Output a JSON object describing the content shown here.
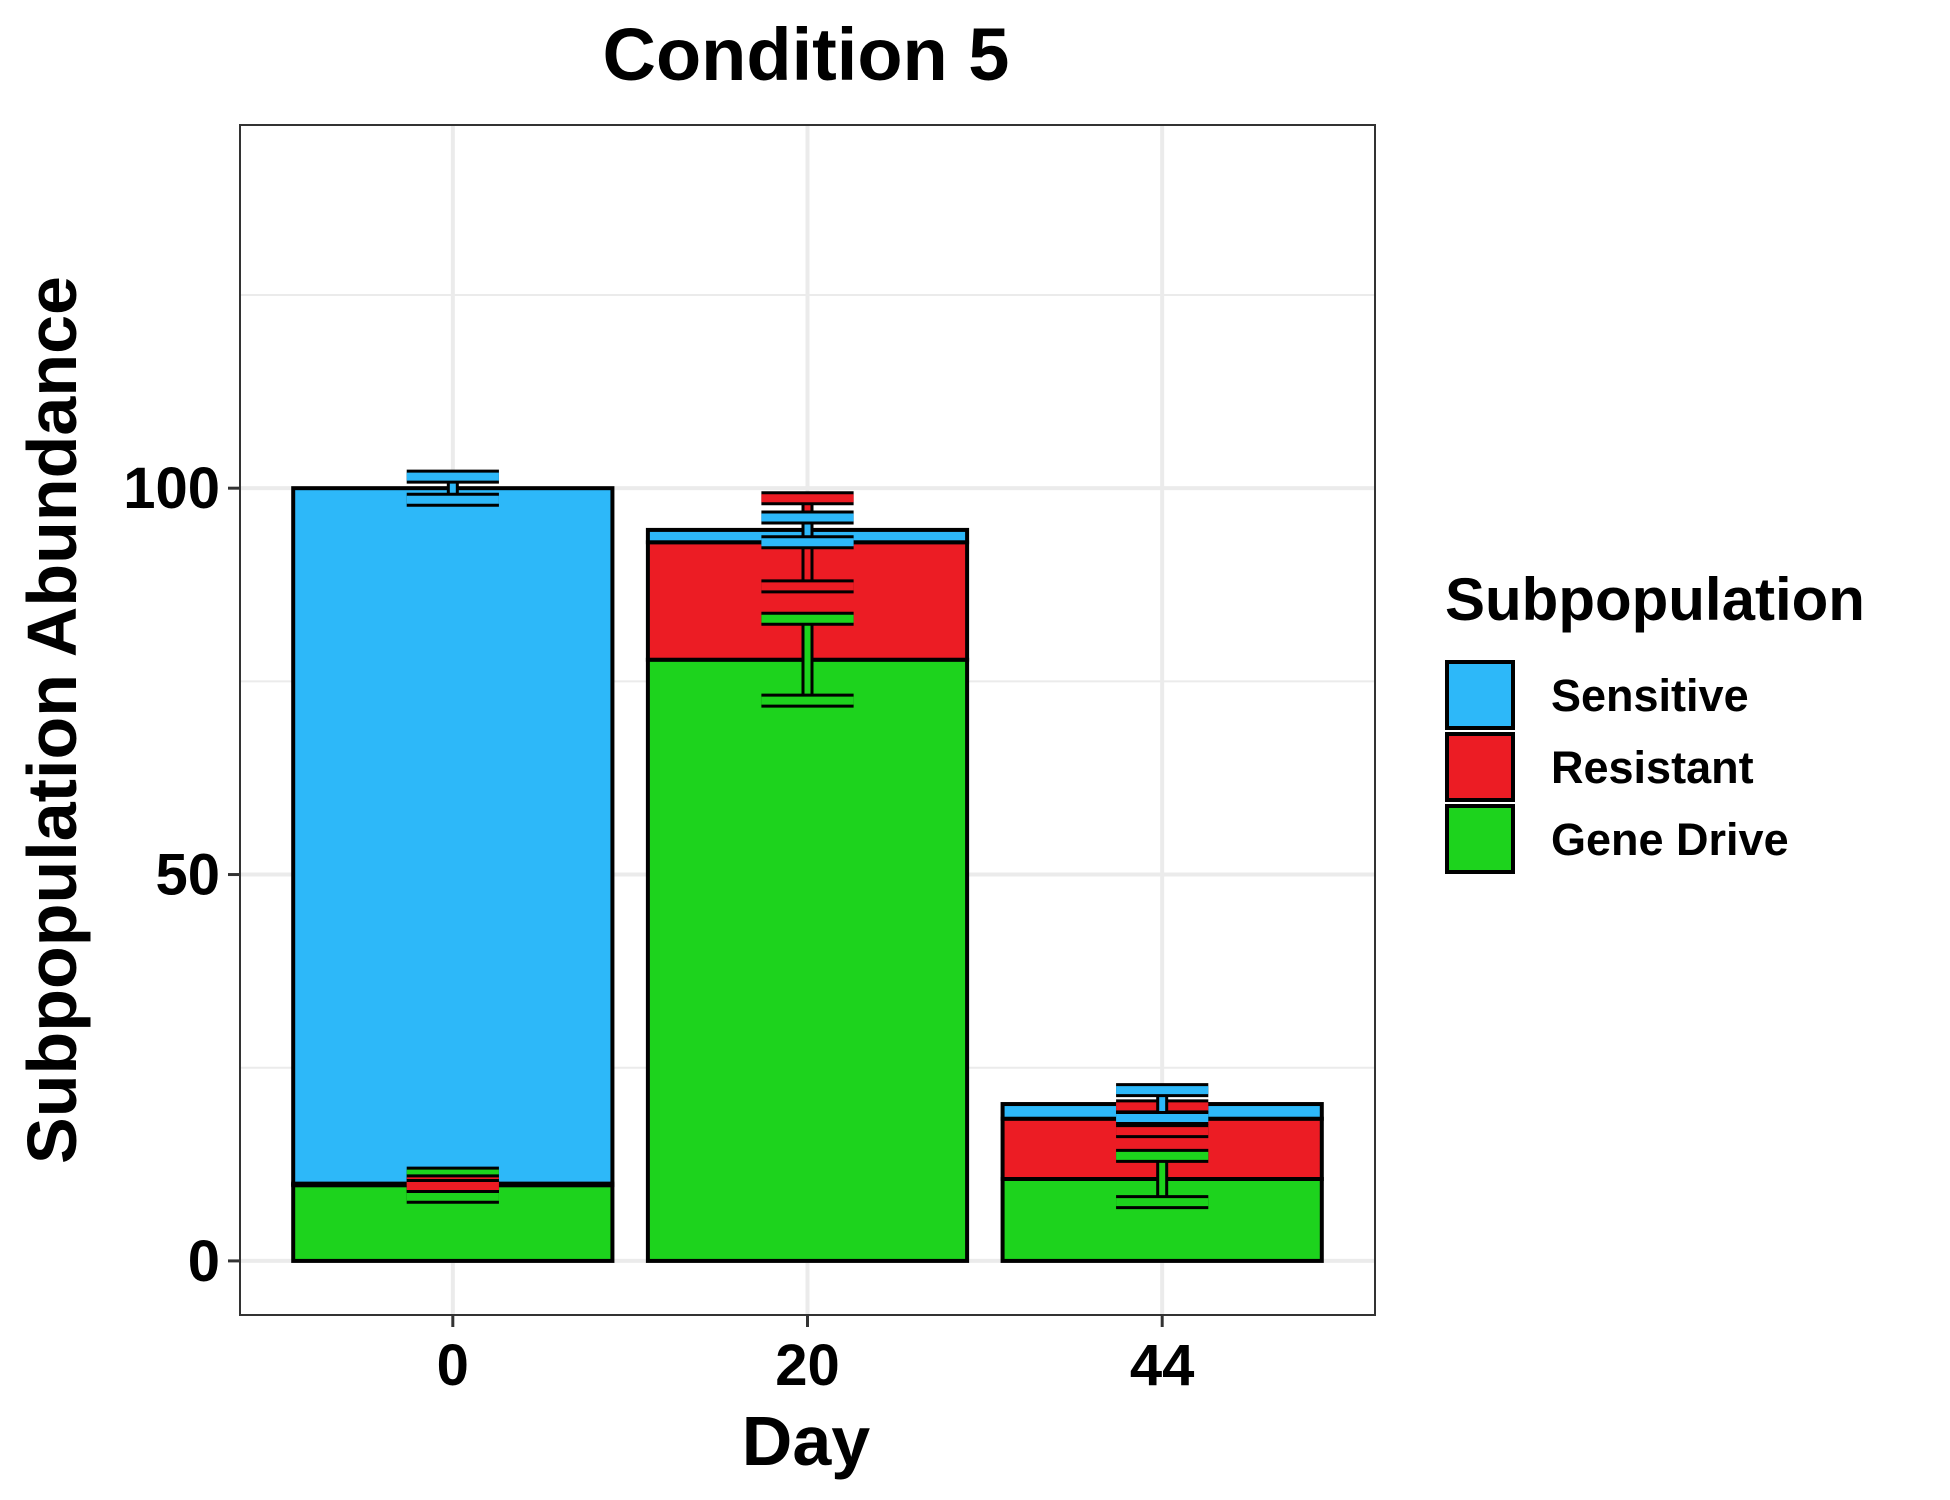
{
  "chart_data": {
    "type": "bar",
    "stacked": true,
    "title": "Condition 5",
    "xlabel": "Day",
    "ylabel": "Subpopulation Abundance",
    "categories": [
      "0",
      "20",
      "44"
    ],
    "ylim": [
      -7,
      147
    ],
    "yticks": [
      0,
      50,
      100
    ],
    "grid": true,
    "legend": {
      "title": "Subpopulation",
      "position": "right"
    },
    "series": [
      {
        "name": "Gene Drive",
        "color": "#1dd31d",
        "values": [
          9.8,
          77.8,
          10.6
        ],
        "error": [
          1.5,
          5.3,
          3.0
        ]
      },
      {
        "name": "Resistant",
        "color": "#ec1c24",
        "values": [
          0.2,
          15.2,
          7.8
        ],
        "error": [
          0.3,
          5.7,
          1.6
        ]
      },
      {
        "name": "Sensitive",
        "color": "#2db8f9",
        "values": [
          90.0,
          1.6,
          1.9
        ],
        "error": [
          1.5,
          1.6,
          1.8
        ]
      }
    ],
    "legend_order": [
      "Sensitive",
      "Resistant",
      "Gene Drive"
    ]
  }
}
